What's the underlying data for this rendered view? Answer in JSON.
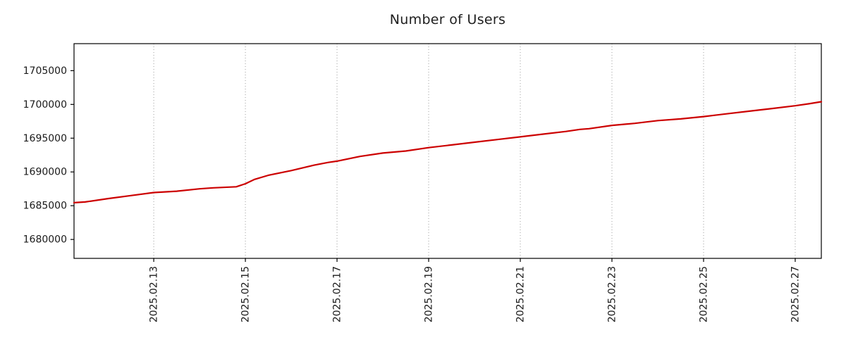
{
  "chart_data": {
    "type": "line",
    "title": "Number of Users",
    "xlabel": "",
    "ylabel": "",
    "legend": "none",
    "grid": "x-only",
    "grid_style": "dotted",
    "x_tick_labels": [
      "2025.02.13",
      "2025.02.15",
      "2025.02.17",
      "2025.02.19",
      "2025.02.21",
      "2025.02.23",
      "2025.02.25",
      "2025.02.27"
    ],
    "x_tick_positions": [
      13,
      15,
      17,
      19,
      21,
      23,
      25,
      27
    ],
    "xlim": [
      11.26,
      27.57
    ],
    "x_unit": "day of 2025-02 (fractional)",
    "y_ticks": [
      1680000,
      1685000,
      1690000,
      1695000,
      1700000,
      1705000
    ],
    "ylim": [
      1677200,
      1709000
    ],
    "series": [
      {
        "name": "users",
        "color": "#cc0000",
        "x": [
          11.26,
          11.5,
          12,
          12.5,
          13,
          13.5,
          14,
          14.3,
          14.8,
          15,
          15.2,
          15.5,
          16,
          16.5,
          16.8,
          17,
          17.5,
          18,
          18.5,
          19,
          19.5,
          20,
          20.5,
          21,
          21.5,
          22,
          22.3,
          22.5,
          23,
          23.5,
          24,
          24.5,
          25,
          25.5,
          26,
          26.5,
          27,
          27.3,
          27.57
        ],
        "values": [
          1685450,
          1685550,
          1686050,
          1686500,
          1686950,
          1687150,
          1687500,
          1687650,
          1687800,
          1688250,
          1688900,
          1689500,
          1690200,
          1691000,
          1691400,
          1691600,
          1692300,
          1692800,
          1693100,
          1693600,
          1694000,
          1694400,
          1694800,
          1695200,
          1695600,
          1696000,
          1696300,
          1696400,
          1696900,
          1697200,
          1697600,
          1697850,
          1698200,
          1698600,
          1699000,
          1699400,
          1699800,
          1700100,
          1700400
        ]
      }
    ]
  },
  "style": {
    "background": "#ffffff",
    "grid_color": "#9e9e9e",
    "axis_color": "#000000",
    "tick_label_color": "#1a1a1a",
    "title_color": "#1f1f1f"
  }
}
